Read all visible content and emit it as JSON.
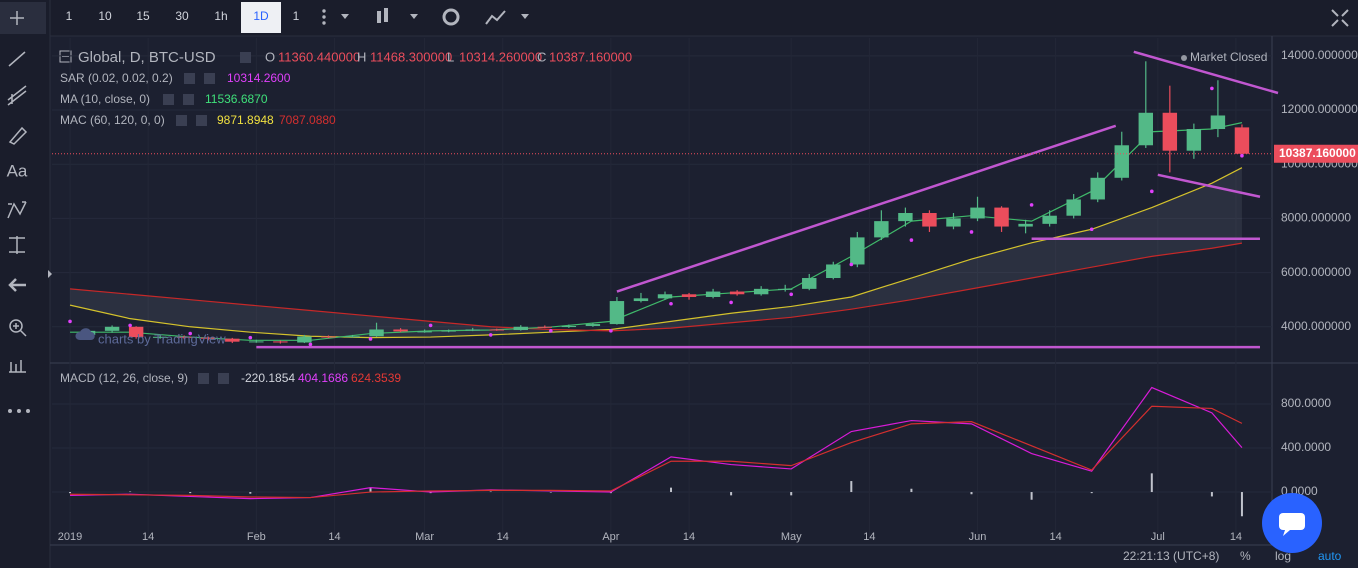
{
  "toolbar": {
    "intervals": [
      "1",
      "10",
      "15",
      "30",
      "1h",
      "1D",
      "1"
    ],
    "active": "1D",
    "text_tool": "Aa"
  },
  "chart_data": {
    "type": "candlestick",
    "title": "Global, D, BTC-USD",
    "ohlc_labels": {
      "o": "O",
      "o_value": "11360.440000",
      "h": "H",
      "h_value": "11468.300000",
      "l": "L",
      "l_value": "10314.260000",
      "c": "C",
      "c_value": "10387.160000"
    },
    "status": "Market Closed",
    "watermark": "charts by TradingView",
    "up_color": "#53b987",
    "down_color": "#eb4d5c",
    "candles": [
      [
        3,
        3700,
        3920,
        3640,
        3850
      ],
      [
        7,
        3850,
        4050,
        3780,
        4000
      ],
      [
        11,
        4000,
        4020,
        3560,
        3620
      ],
      [
        15,
        3620,
        3700,
        3560,
        3630
      ],
      [
        19,
        3630,
        3680,
        3540,
        3600
      ],
      [
        23,
        3600,
        3640,
        3500,
        3560
      ],
      [
        27,
        3560,
        3590,
        3400,
        3450
      ],
      [
        31,
        3450,
        3520,
        3410,
        3460
      ],
      [
        35,
        3460,
        3490,
        3380,
        3420
      ],
      [
        39,
        3420,
        3700,
        3400,
        3640
      ],
      [
        43,
        3640,
        3680,
        3580,
        3620
      ],
      [
        47,
        3620,
        3700,
        3600,
        3650
      ],
      [
        51,
        3650,
        4150,
        3630,
        3900
      ],
      [
        55,
        3900,
        3950,
        3800,
        3830
      ],
      [
        59,
        3830,
        3900,
        3780,
        3830
      ],
      [
        63,
        3830,
        3900,
        3800,
        3860
      ],
      [
        67,
        3860,
        3960,
        3840,
        3900
      ],
      [
        71,
        3900,
        3930,
        3850,
        3880
      ],
      [
        75,
        3880,
        4060,
        3860,
        4000
      ],
      [
        79,
        4000,
        4050,
        3950,
        3990
      ],
      [
        83,
        3990,
        4080,
        3960,
        4030
      ],
      [
        87,
        4030,
        4150,
        4000,
        4100
      ],
      [
        91,
        4100,
        5100,
        4080,
        4950
      ],
      [
        95,
        4950,
        5250,
        4900,
        5050
      ],
      [
        99,
        5050,
        5300,
        5000,
        5200
      ],
      [
        103,
        5200,
        5250,
        5000,
        5100
      ],
      [
        107,
        5100,
        5400,
        5050,
        5300
      ],
      [
        111,
        5300,
        5350,
        5150,
        5200
      ],
      [
        115,
        5200,
        5500,
        5150,
        5400
      ],
      [
        119,
        5400,
        5550,
        5300,
        5400
      ],
      [
        123,
        5400,
        5950,
        5350,
        5800
      ],
      [
        127,
        5800,
        6400,
        5750,
        6300
      ],
      [
        131,
        6300,
        7500,
        6200,
        7300
      ],
      [
        135,
        7300,
        8300,
        7200,
        7900
      ],
      [
        139,
        7900,
        8400,
        7700,
        8200
      ],
      [
        143,
        8200,
        8300,
        7500,
        7700
      ],
      [
        147,
        7700,
        8200,
        7600,
        8000
      ],
      [
        151,
        8000,
        8800,
        7900,
        8400
      ],
      [
        155,
        8400,
        8450,
        7500,
        7700
      ],
      [
        159,
        7700,
        7950,
        7450,
        7800
      ],
      [
        163,
        7800,
        8300,
        7700,
        8100
      ],
      [
        167,
        8100,
        8900,
        8000,
        8700
      ],
      [
        171,
        8700,
        9700,
        8600,
        9500
      ],
      [
        175,
        9500,
        11200,
        9400,
        10700
      ],
      [
        179,
        10700,
        13800,
        10600,
        11900
      ],
      [
        183,
        11900,
        12900,
        9700,
        10500
      ],
      [
        187,
        10500,
        11500,
        10200,
        11300
      ],
      [
        191,
        11300,
        13100,
        11000,
        11800
      ],
      [
        195,
        11360.44,
        11468.3,
        10314.26,
        10387.16
      ]
    ],
    "last_price_label": "10387.160000",
    "xlim": [
      -3,
      200
    ],
    "xticks": [
      {
        "value": 0,
        "label": "2019"
      },
      {
        "value": 13,
        "label": "14"
      },
      {
        "value": 31,
        "label": "Feb"
      },
      {
        "value": 44,
        "label": "14"
      },
      {
        "value": 59,
        "label": "Mar"
      },
      {
        "value": 72,
        "label": "14"
      },
      {
        "value": 90,
        "label": "Apr"
      },
      {
        "value": 103,
        "label": "14"
      },
      {
        "value": 120,
        "label": "May"
      },
      {
        "value": 133,
        "label": "14"
      },
      {
        "value": 151,
        "label": "Jun"
      },
      {
        "value": 164,
        "label": "14"
      },
      {
        "value": 181,
        "label": "Jul"
      },
      {
        "value": 194,
        "label": "14"
      }
    ],
    "ylim": [
      2700,
      14660
    ],
    "yticks": [
      {
        "value": 4000,
        "label": "4000.000000"
      },
      {
        "value": 6000,
        "label": "6000.000000"
      },
      {
        "value": 8000,
        "label": "8000.000000"
      },
      {
        "value": 10000,
        "label": "10000.000000"
      },
      {
        "value": 12000,
        "label": "12000.000000"
      },
      {
        "value": 14000,
        "label": "14000.000000"
      }
    ],
    "grid": true,
    "indicator_x": [
      0,
      10,
      20,
      30,
      40,
      50,
      60,
      70,
      80,
      90,
      100,
      110,
      120,
      130,
      140,
      150,
      160,
      170,
      180,
      190,
      195
    ],
    "sar": {
      "name": "SAR (0.02, 0.02, 0.2)",
      "color": "#e040fb",
      "value_label": "10314.2600",
      "values": [
        4200,
        4050,
        3750,
        3600,
        3350,
        3550,
        4050,
        3700,
        3850,
        3850,
        4850,
        4900,
        5200,
        6300,
        7200,
        7500,
        8500,
        7600,
        9000,
        12800,
        10314.26
      ]
    },
    "ma": {
      "name": "MA (10, close, 0)",
      "color": "#3fb96a",
      "value_label": "11536.6870",
      "values": [
        3800,
        3800,
        3620,
        3500,
        3500,
        3750,
        3850,
        3880,
        3990,
        4200,
        5100,
        5250,
        5400,
        6600,
        7900,
        8100,
        7900,
        9000,
        11200,
        11300,
        11536.687
      ]
    },
    "mac": {
      "name": "MAC (60, 120, 0, 0)",
      "series": [
        {
          "color": "#d4c22c",
          "value_label": "9871.8948",
          "values": [
            4800,
            4300,
            4000,
            3800,
            3650,
            3600,
            3620,
            3700,
            3800,
            3900,
            4200,
            4500,
            4750,
            5100,
            5800,
            6500,
            7100,
            7600,
            8400,
            9300,
            9871.8948
          ]
        },
        {
          "color": "#c62828",
          "value_label": "7087.0880",
          "values": [
            5400,
            5200,
            5000,
            4800,
            4600,
            4400,
            4200,
            4000,
            3900,
            3850,
            3950,
            4150,
            4350,
            4650,
            5000,
            5400,
            5800,
            6200,
            6600,
            6900,
            7087.088
          ]
        }
      ]
    },
    "drawings_color": "#c157d0",
    "drawings": [
      [
        [
          91,
          5300
        ],
        [
          174,
          11420
        ]
      ],
      [
        [
          177,
          14150
        ],
        [
          201,
          12630
        ]
      ],
      [
        [
          181,
          9610
        ],
        [
          198,
          8800
        ]
      ],
      [
        [
          160,
          7250
        ],
        [
          198,
          7250
        ]
      ],
      [
        [
          31,
          3250
        ],
        [
          198,
          3250
        ]
      ]
    ],
    "macd": {
      "name": "MACD (12, 26, close, 9)",
      "ylim": [
        -436,
        1155
      ],
      "yticks": [
        {
          "value": 0,
          "label": "0.0000"
        },
        {
          "value": 400,
          "label": "400.0000"
        },
        {
          "value": 800,
          "label": "800.0000"
        }
      ],
      "histogram": {
        "color": "#c0c3cc",
        "value_label": "-220.1854",
        "values": [
          -10,
          5,
          -10,
          -15,
          0,
          40,
          -10,
          5,
          -5,
          -10,
          40,
          -30,
          -30,
          100,
          30,
          -20,
          -70,
          -10,
          170,
          -40,
          -220.1854
        ]
      },
      "series": [
        {
          "color": "#d81bd8",
          "value_label": "404.1686",
          "values": [
            -30,
            -20,
            -40,
            -60,
            -50,
            40,
            0,
            20,
            10,
            0,
            320,
            250,
            210,
            550,
            650,
            620,
            350,
            190,
            950,
            720,
            404.1686
          ]
        },
        {
          "color": "#d32f2f",
          "value_label": "624.3539",
          "values": [
            -20,
            -25,
            -30,
            -45,
            -50,
            0,
            10,
            15,
            15,
            10,
            280,
            280,
            240,
            450,
            620,
            640,
            420,
            200,
            780,
            760,
            624.3539
          ]
        }
      ]
    }
  },
  "status_bar": {
    "clock": "22:21:13 (UTC+8)",
    "percent": "%",
    "log": "log",
    "auto": "auto"
  }
}
